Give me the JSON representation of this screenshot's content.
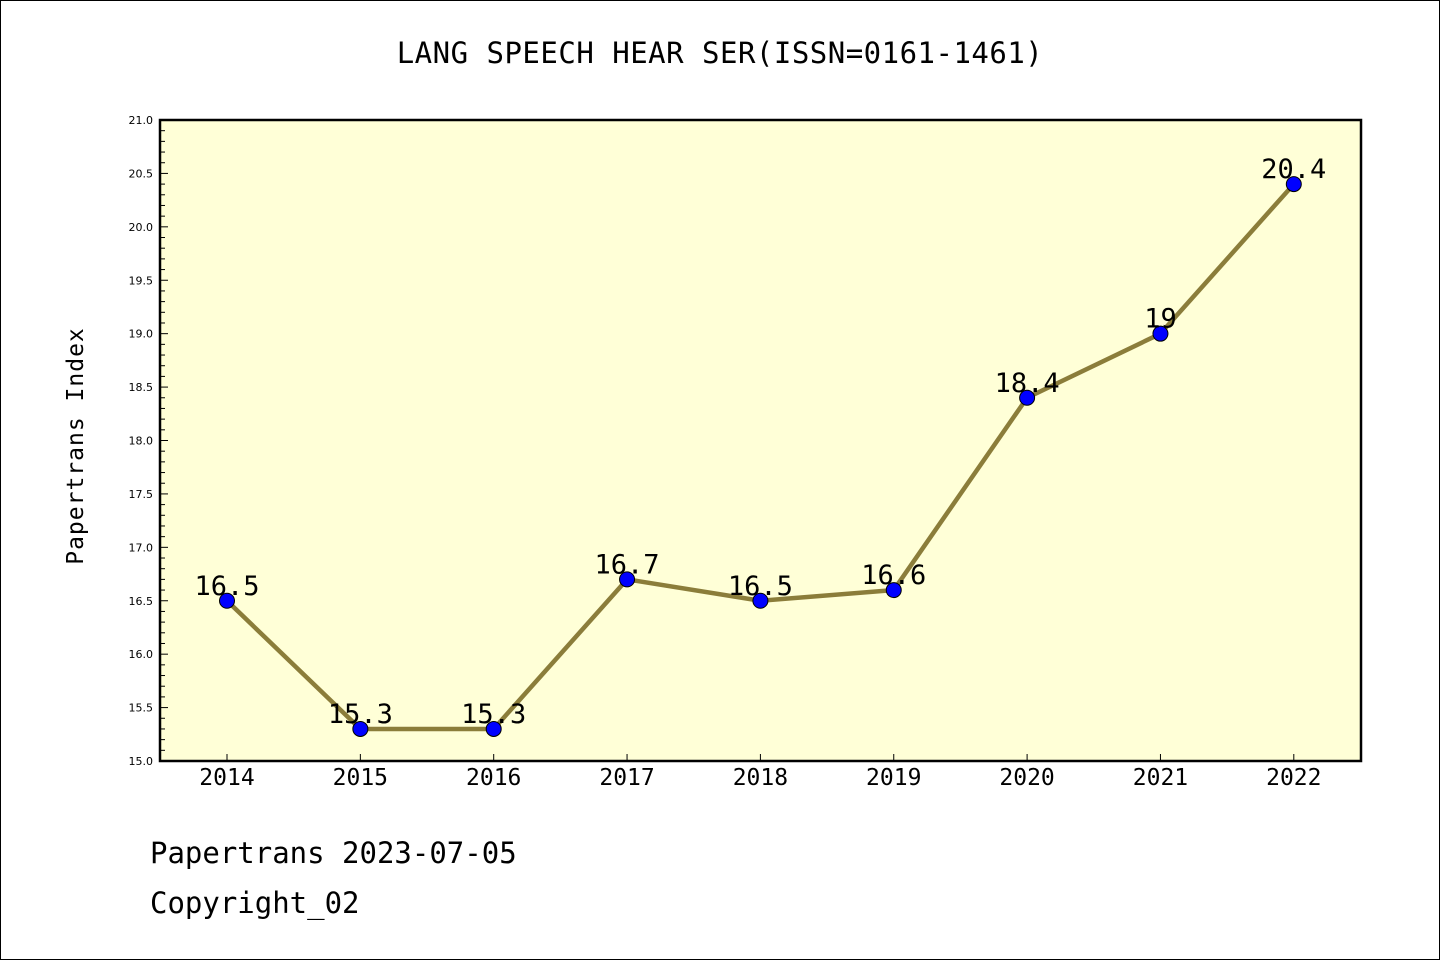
{
  "chart_data": {
    "type": "line",
    "title": "LANG SPEECH HEAR SER(ISSN=0161-1461)",
    "xlabel": "",
    "ylabel": "Papertrans Index",
    "categories": [
      "2014",
      "2015",
      "2016",
      "2017",
      "2018",
      "2019",
      "2020",
      "2021",
      "2022"
    ],
    "series": [
      {
        "values": [
          16.5,
          15.3,
          15.3,
          16.7,
          16.5,
          16.6,
          18.4,
          19.0,
          20.4
        ],
        "labels": [
          "16.5",
          "15.3",
          "15.3",
          "16.7",
          "16.5",
          "16.6",
          "18.4",
          "19",
          "20.4"
        ]
      }
    ],
    "ylim": [
      15.0,
      21.0
    ],
    "yticks": [
      "15.0",
      "15.5",
      "16.0",
      "16.5",
      "17.0",
      "17.5",
      "18.0",
      "18.5",
      "19.0",
      "19.5",
      "20.0",
      "20.5",
      "21.0"
    ],
    "grid": false,
    "plot_background": "#ffffd7",
    "line_color": "#8b7d3a",
    "marker_color": "#0000ff"
  },
  "footer": {
    "date_text": "Papertrans 2023-07-05",
    "copyright_text": "Copyright_02"
  }
}
